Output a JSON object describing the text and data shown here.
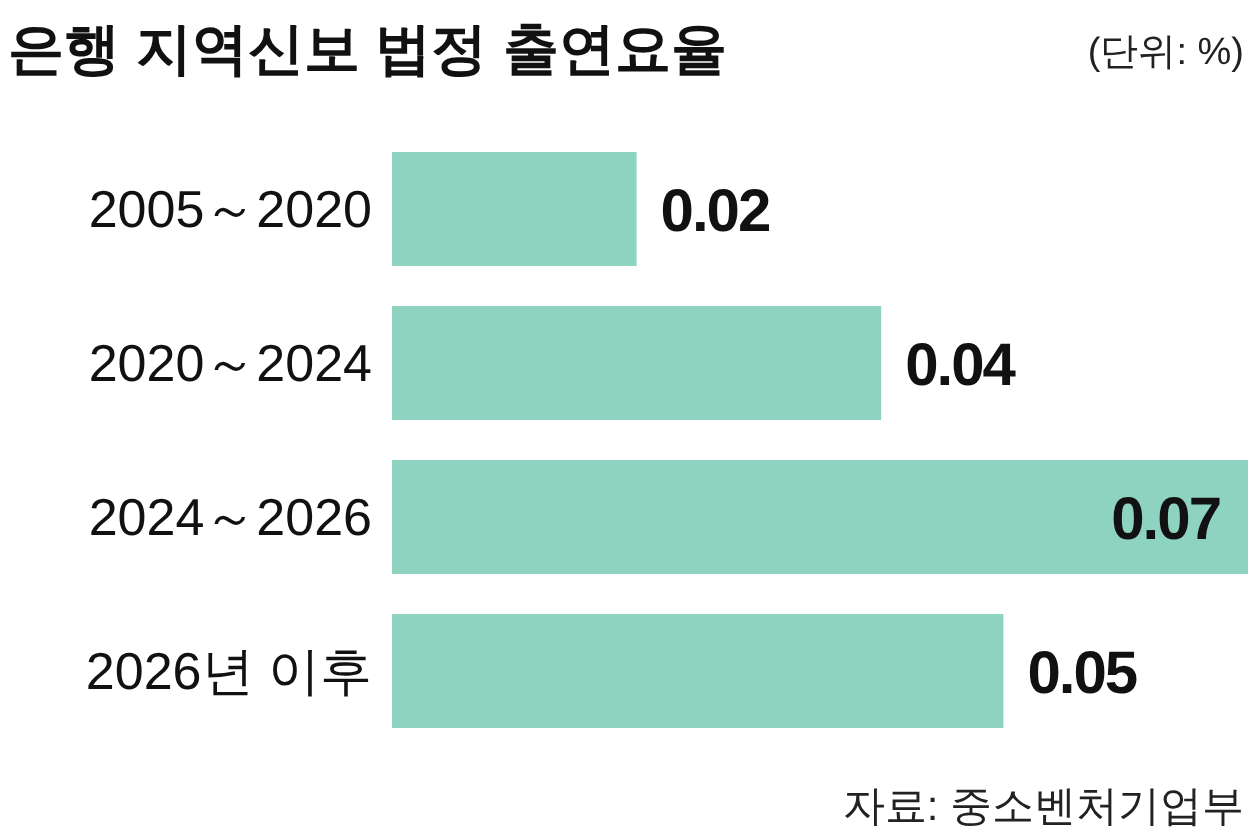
{
  "chart_data": {
    "type": "bar",
    "orientation": "horizontal",
    "title": "은행 지역신보 법정 출연요율",
    "subtitle": "(단위: %)",
    "categories": [
      "2005～2020",
      "2020～2024",
      "2024～2026",
      "2026년 이후"
    ],
    "values": [
      0.02,
      0.04,
      0.07,
      0.05
    ],
    "color": "#8dd3c0",
    "data_labels": true,
    "annotations": [
      "자료: 중소벤처기업부"
    ]
  }
}
